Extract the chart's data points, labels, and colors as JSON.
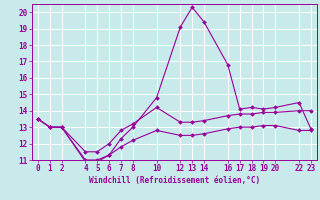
{
  "xlabel": "Windchill (Refroidissement éolien,°C)",
  "bg_color": "#c8eaea",
  "grid_color": "#ffffff",
  "line_color": "#990099",
  "xlim": [
    -0.5,
    23.5
  ],
  "ylim": [
    11,
    20.5
  ],
  "xticks": [
    0,
    1,
    2,
    4,
    5,
    6,
    7,
    8,
    10,
    12,
    13,
    14,
    16,
    17,
    18,
    19,
    20,
    22,
    23
  ],
  "yticks": [
    11,
    12,
    13,
    14,
    15,
    16,
    17,
    18,
    19,
    20
  ],
  "line1_x": [
    0,
    1,
    2,
    4,
    5,
    6,
    7,
    8,
    10,
    12,
    13,
    14,
    16,
    17,
    18,
    19,
    20,
    22,
    23
  ],
  "line1_y": [
    13.5,
    13.0,
    13.0,
    10.9,
    10.9,
    11.3,
    12.3,
    13.0,
    14.8,
    19.1,
    20.3,
    19.4,
    16.8,
    14.1,
    14.2,
    14.1,
    14.2,
    14.5,
    12.9
  ],
  "line2_x": [
    0,
    1,
    2,
    4,
    5,
    6,
    7,
    8,
    10,
    12,
    13,
    14,
    16,
    17,
    18,
    19,
    20,
    22,
    23
  ],
  "line2_y": [
    13.5,
    13.0,
    13.0,
    11.5,
    11.5,
    12.0,
    12.8,
    13.2,
    14.2,
    13.3,
    13.3,
    13.4,
    13.7,
    13.8,
    13.8,
    13.9,
    13.9,
    14.0,
    14.0
  ],
  "line3_x": [
    0,
    1,
    2,
    4,
    5,
    6,
    7,
    8,
    10,
    12,
    13,
    14,
    16,
    17,
    18,
    19,
    20,
    22,
    23
  ],
  "line3_y": [
    13.5,
    13.0,
    13.0,
    11.0,
    11.0,
    11.3,
    11.8,
    12.2,
    12.8,
    12.5,
    12.5,
    12.6,
    12.9,
    13.0,
    13.0,
    13.1,
    13.1,
    12.8,
    12.8
  ],
  "tick_fontsize": 5.5,
  "xlabel_fontsize": 5.5,
  "marker_size": 2.0,
  "line_width": 0.8
}
